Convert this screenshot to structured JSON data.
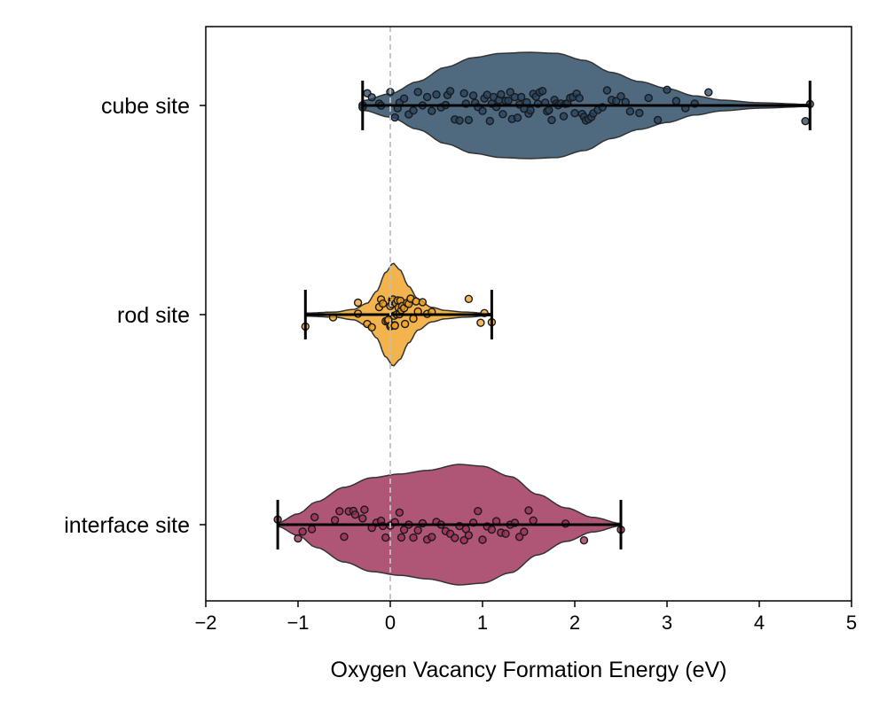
{
  "chart_data": {
    "type": "violin",
    "orientation": "horizontal",
    "xlabel": "Oxygen Vacancy Formation Energy (eV)",
    "ylabel": "",
    "title": "",
    "xlim": [
      -2,
      5
    ],
    "x_ticks": [
      "−2",
      "−1",
      "0",
      "1",
      "2",
      "3",
      "4",
      "5"
    ],
    "reference_line": {
      "x": 0,
      "style": "dashed",
      "color": "#c0c0c0"
    },
    "grid": false,
    "legend": "none",
    "categories": [
      "cube site",
      "rod site",
      "interface site"
    ],
    "series": [
      {
        "name": "cube site",
        "color": "#23435f",
        "min": -0.3,
        "max": 4.55,
        "mode": 1.6,
        "density_profile": [
          [
            -0.3,
            0.09
          ],
          [
            0.0,
            0.22
          ],
          [
            0.3,
            0.45
          ],
          [
            0.6,
            0.72
          ],
          [
            0.9,
            0.9
          ],
          [
            1.2,
            0.98
          ],
          [
            1.5,
            1.0
          ],
          [
            1.8,
            0.98
          ],
          [
            2.1,
            0.85
          ],
          [
            2.4,
            0.62
          ],
          [
            2.7,
            0.45
          ],
          [
            3.0,
            0.32
          ],
          [
            3.3,
            0.18
          ],
          [
            3.6,
            0.1
          ],
          [
            4.0,
            0.05
          ],
          [
            4.55,
            0.02
          ]
        ],
        "points": [
          -0.3,
          -0.3,
          -0.25,
          -0.2,
          -0.12,
          -0.1,
          0.0,
          0.05,
          0.08,
          0.1,
          0.15,
          0.2,
          0.25,
          0.3,
          0.35,
          0.4,
          0.45,
          0.5,
          0.55,
          0.6,
          0.62,
          0.65,
          0.7,
          0.75,
          0.8,
          0.82,
          0.85,
          0.9,
          0.92,
          0.95,
          1.0,
          1.02,
          1.05,
          1.08,
          1.1,
          1.12,
          1.15,
          1.18,
          1.2,
          1.22,
          1.25,
          1.28,
          1.3,
          1.32,
          1.35,
          1.38,
          1.4,
          1.42,
          1.45,
          1.48,
          1.5,
          1.52,
          1.55,
          1.58,
          1.6,
          1.62,
          1.65,
          1.68,
          1.7,
          1.72,
          1.75,
          1.78,
          1.8,
          1.82,
          1.85,
          1.88,
          1.9,
          1.92,
          1.95,
          1.98,
          2.0,
          2.02,
          2.05,
          2.08,
          2.1,
          2.12,
          2.15,
          2.18,
          2.2,
          2.25,
          2.3,
          2.35,
          2.4,
          2.45,
          2.5,
          2.55,
          2.6,
          2.7,
          2.8,
          2.9,
          3.0,
          3.1,
          3.2,
          3.3,
          3.45,
          4.5,
          4.55
        ]
      },
      {
        "name": "rod site",
        "color": "#f0a020",
        "min": -0.92,
        "max": 1.1,
        "mode": 0.03,
        "density_profile": [
          [
            -0.92,
            0.03
          ],
          [
            -0.6,
            0.05
          ],
          [
            -0.4,
            0.1
          ],
          [
            -0.25,
            0.22
          ],
          [
            -0.15,
            0.45
          ],
          [
            -0.05,
            0.82
          ],
          [
            0.03,
            1.0
          ],
          [
            0.1,
            0.88
          ],
          [
            0.2,
            0.55
          ],
          [
            0.3,
            0.3
          ],
          [
            0.45,
            0.14
          ],
          [
            0.6,
            0.08
          ],
          [
            0.8,
            0.05
          ],
          [
            1.1,
            0.02
          ]
        ],
        "points": [
          -0.92,
          -0.62,
          -0.35,
          -0.35,
          -0.25,
          -0.2,
          -0.12,
          -0.1,
          -0.08,
          -0.05,
          -0.03,
          -0.02,
          0.0,
          0.0,
          0.01,
          0.02,
          0.02,
          0.03,
          0.03,
          0.04,
          0.05,
          0.05,
          0.06,
          0.07,
          0.08,
          0.09,
          0.1,
          0.11,
          0.12,
          0.13,
          0.15,
          0.16,
          0.18,
          0.2,
          0.22,
          0.25,
          0.28,
          0.3,
          0.35,
          0.4,
          0.45,
          0.85,
          0.98,
          1.02,
          1.1
        ]
      },
      {
        "name": "interface site",
        "color": "#9b2c55",
        "min": -1.22,
        "max": 2.5,
        "mode": 0.75,
        "density_profile": [
          [
            -1.22,
            0.03
          ],
          [
            -1.0,
            0.18
          ],
          [
            -0.8,
            0.38
          ],
          [
            -0.5,
            0.62
          ],
          [
            -0.2,
            0.78
          ],
          [
            0.1,
            0.84
          ],
          [
            0.4,
            0.9
          ],
          [
            0.75,
            1.0
          ],
          [
            1.0,
            0.97
          ],
          [
            1.3,
            0.8
          ],
          [
            1.6,
            0.5
          ],
          [
            1.9,
            0.28
          ],
          [
            2.2,
            0.12
          ],
          [
            2.5,
            0.02
          ]
        ],
        "points": [
          -1.22,
          -1.0,
          -0.95,
          -0.85,
          -0.82,
          -0.6,
          -0.55,
          -0.5,
          -0.45,
          -0.4,
          -0.38,
          -0.3,
          -0.28,
          -0.2,
          -0.15,
          -0.1,
          -0.08,
          -0.05,
          0.0,
          0.05,
          0.1,
          0.12,
          0.15,
          0.2,
          0.25,
          0.3,
          0.35,
          0.4,
          0.45,
          0.5,
          0.55,
          0.6,
          0.65,
          0.7,
          0.75,
          0.8,
          0.82,
          0.85,
          0.9,
          0.95,
          1.0,
          1.05,
          1.1,
          1.15,
          1.2,
          1.25,
          1.3,
          1.35,
          1.4,
          1.45,
          1.5,
          1.55,
          1.9,
          2.1,
          2.5
        ]
      }
    ]
  }
}
